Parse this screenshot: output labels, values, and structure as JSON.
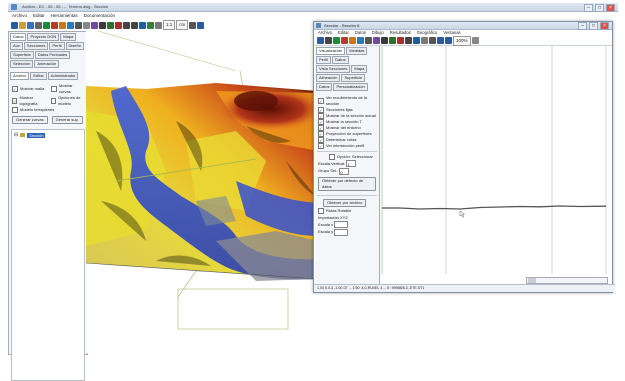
{
  "window": {
    "title": "Archivo - EC - 05 - 05 - ... Terreno.dwg - Sección",
    "controls": [
      "–",
      "□",
      "×"
    ]
  },
  "menu": [
    "Archivo",
    "Editar",
    "Herramientas",
    "Documentación"
  ],
  "toolbar": {
    "zoom_label": "cm",
    "zoom_value": "1:1"
  },
  "left_panel": {
    "tabs": [
      "Datos",
      "Proyecto DGN",
      "Mapa",
      "Aux",
      "Secciones",
      "Perfil",
      "Diseño",
      "Superficie",
      "Datos Puntuales",
      "Selección",
      "Animación"
    ],
    "subtabs": [
      "Archivo",
      "Editar",
      "Administrador"
    ],
    "options": [
      {
        "label": "Mostrar malla",
        "checked": true
      },
      {
        "label": "Mostrar curvas",
        "checked": false
      },
      {
        "label": "Mostrar topografía",
        "checked": true
      },
      {
        "label": "Opciones de modelo",
        "checked": false
      },
      {
        "label": "Modelo terraplenes",
        "checked": false
      }
    ],
    "buttons": [
      "Generar curvas",
      "Generar sup."
    ],
    "tree_item": "Sección"
  },
  "section_window": {
    "title": "Sección - Sección 8",
    "menu": [
      "Archivo",
      "Editar",
      "Datos",
      "Dibujo",
      "Resultados",
      "Geográfico",
      "Ventanas"
    ],
    "zoom": "100%",
    "tabs": [
      "Visualización",
      "Medidas",
      "Perfil",
      "Datos",
      "Vista Secciones",
      "Mapa",
      "Alineación",
      "Superficie",
      "Datos",
      "Personalización"
    ],
    "options": [
      {
        "label": "Ver recubrimiento de la sección",
        "checked": true
      },
      {
        "label": "Secciones fijas",
        "checked": true
      },
      {
        "label": "Mostrar de la sección actual",
        "checked": true
      },
      {
        "label": "Mostrar la sección T",
        "checked": true
      },
      {
        "label": "Mostrar del entorno",
        "checked": true
      },
      {
        "label": "Proyección de superficies",
        "checked": true
      },
      {
        "label": "Determinar cotas",
        "checked": true
      },
      {
        "label": "Ver intersección perfil",
        "checked": true
      }
    ],
    "option_autoselect": "Opción: Seleccionar",
    "fields": [
      {
        "label": "Escala Vertical:",
        "value": "1"
      },
      {
        "label": "Grupo Sel.:",
        "value": "0"
      }
    ],
    "buttons": [
      "Obtener por defecto de datos",
      "Obtener por archivo"
    ],
    "extra_check": "Rutas Rotable",
    "extra_label": "Importación XYZ",
    "coord_fields": [
      {
        "label": "Escala x",
        "value": ""
      },
      {
        "label": "Escala y",
        "value": ""
      }
    ],
    "status": "1.00 0.0-3 -1.00-07 ... 1:50: 4,0-RUI/EL 4 ... E: 99988/8.3 -ETE.ST1"
  },
  "colors": {
    "accent": "#5b86c4",
    "titlebar": "#c9d6e6",
    "profile_line": "#555555"
  }
}
